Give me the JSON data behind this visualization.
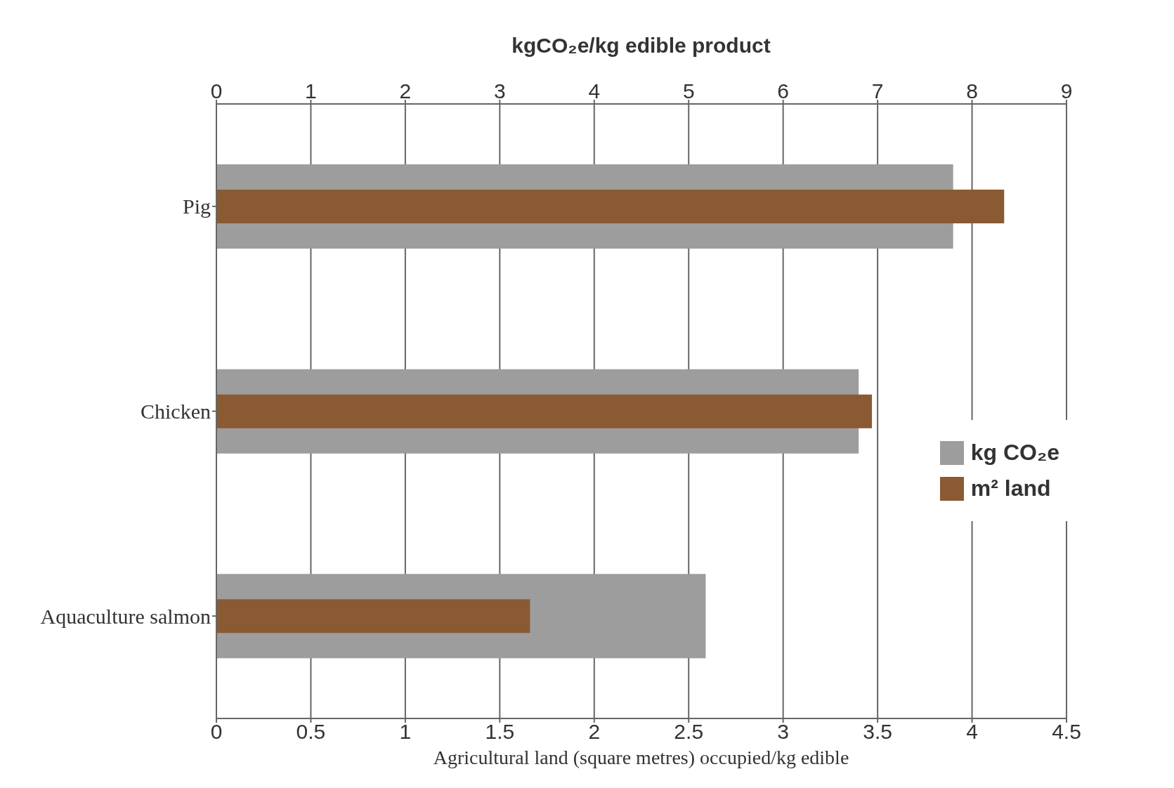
{
  "chart_data": {
    "type": "bar",
    "orientation": "horizontal",
    "x2label": "kgCO₂e/kg edible product",
    "xlabel": "Agricultural land (square metres) occupied/kg edible",
    "categories": [
      "Pig",
      "Chicken",
      "Aquaculture salmon"
    ],
    "series": [
      {
        "name": "kg CO₂e",
        "color": "#9d9d9d",
        "axis": "x2",
        "values": [
          7.8,
          6.8,
          5.18
        ]
      },
      {
        "name": "m² land",
        "color": "#8a5a33",
        "values": [
          4.17,
          3.47,
          1.66
        ]
      }
    ],
    "xlim": [
      0,
      4.5
    ],
    "xticks": [
      0,
      0.5,
      1,
      1.5,
      2,
      2.5,
      3,
      3.5,
      4,
      4.5
    ],
    "x2lim": [
      0,
      9
    ],
    "x2ticks": [
      0,
      1,
      2,
      3,
      4,
      5,
      6,
      7,
      8,
      9
    ],
    "grid": "x",
    "legend": "right"
  }
}
